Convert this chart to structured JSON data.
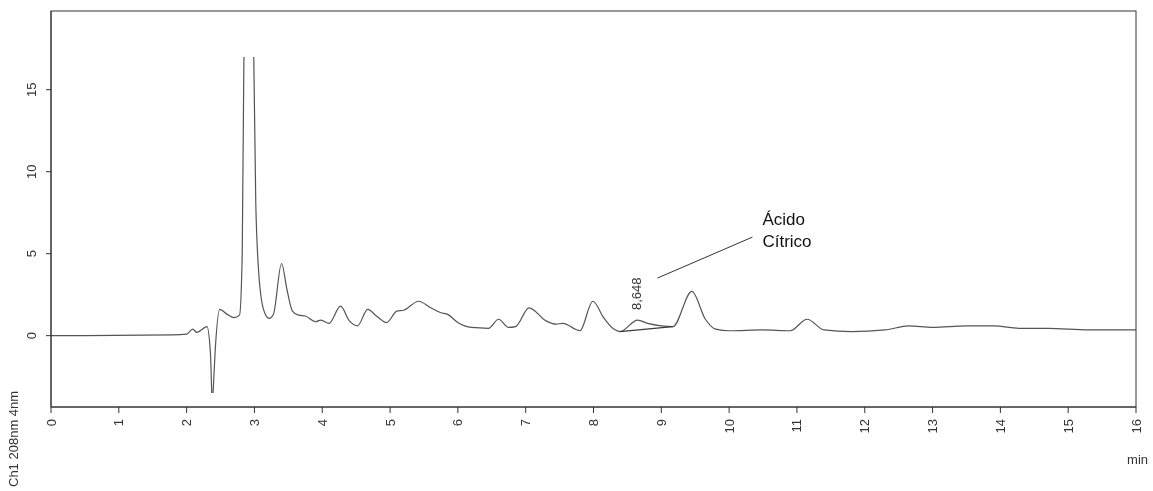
{
  "chart_data": {
    "type": "line",
    "xlabel": "min",
    "ylabel": "Ch1 208nm 4nm",
    "xlim": [
      0,
      16
    ],
    "ylim": [
      -4.35,
      19.8
    ],
    "xticks": [
      0,
      1,
      2,
      3,
      4,
      5,
      6,
      7,
      8,
      9,
      10,
      11,
      12,
      13,
      14,
      15,
      16
    ],
    "yticks": [
      0,
      5,
      10,
      15
    ],
    "grid": false,
    "marker": "none",
    "line_style": "solid",
    "annotations": [
      {
        "text": "8,648",
        "x": 8.648,
        "y": 0.95
      },
      "Ácido Cítrico"
    ],
    "series": [
      {
        "color": "#555555",
        "x": [
          0,
          1.8,
          2.0,
          2.09,
          2.15,
          2.3,
          2.35,
          2.37,
          2.38,
          2.39,
          2.42,
          2.49,
          2.6,
          2.7,
          2.78,
          2.82,
          2.845,
          2.86,
          2.98,
          2.99,
          3.02,
          3.08,
          3.15,
          3.22,
          3.28,
          3.4,
          3.48,
          3.56,
          3.65,
          3.75,
          3.9,
          3.98,
          4.1,
          4.27,
          4.4,
          4.52,
          4.67,
          4.8,
          4.95,
          5.1,
          5.2,
          5.42,
          5.6,
          5.75,
          5.85,
          6.0,
          6.2,
          6.45,
          6.6,
          6.75,
          6.85,
          7.05,
          7.3,
          7.45,
          7.55,
          7.8,
          7.99,
          8.15,
          8.3,
          8.39,
          8.65,
          8.8,
          9.0,
          9.17,
          9.45,
          9.65,
          9.8,
          10.0,
          10.5,
          10.9,
          11.15,
          11.4,
          11.8,
          12.3,
          12.65,
          13.0,
          13.5,
          13.9,
          14.3,
          14.7,
          15.3,
          16
        ],
        "values": [
          0,
          0.05,
          0.1,
          0.4,
          0.2,
          0.55,
          -1,
          -3.5,
          null,
          -3.5,
          -1,
          1.6,
          1.3,
          1.1,
          1.25,
          5,
          17,
          null,
          null,
          17,
          8,
          3,
          1.4,
          1.05,
          1.3,
          4.4,
          2.8,
          1.5,
          1.25,
          1.2,
          0.85,
          0.95,
          0.75,
          1.8,
          0.9,
          0.6,
          1.6,
          1.2,
          0.8,
          1.5,
          1.55,
          2.1,
          1.7,
          1.4,
          1.3,
          0.8,
          0.5,
          0.45,
          1.0,
          0.5,
          0.55,
          1.7,
          0.9,
          0.7,
          0.75,
          0.3,
          2.1,
          1.1,
          0.4,
          0.25,
          0.95,
          0.75,
          0.6,
          0.55,
          2.7,
          1.0,
          0.4,
          0.3,
          0.35,
          0.3,
          1.0,
          0.35,
          0.25,
          0.35,
          0.6,
          0.5,
          0.6,
          0.6,
          0.45,
          0.45,
          0.35,
          0.35
        ]
      },
      {
        "color": "#3a3a3a",
        "x": [
          8.39,
          9.17
        ],
        "values": [
          0.25,
          0.55
        ]
      }
    ]
  }
}
